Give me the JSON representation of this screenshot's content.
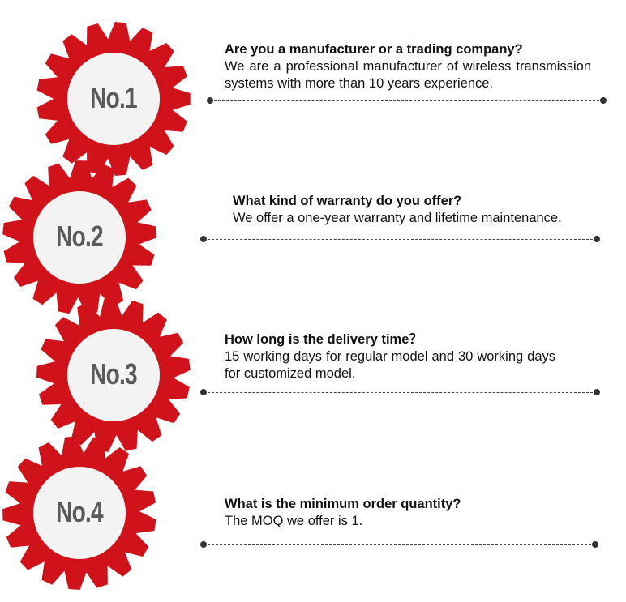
{
  "colors": {
    "gear": "#d0121b",
    "inner": "#f3f3f3",
    "label": "#5a5a5a"
  },
  "items": [
    {
      "label": "No.1",
      "question": "Are you a manufacturer or a trading company?",
      "answer": "We are a professional manufacturer of wireless transmission systems with more than 10 years experience."
    },
    {
      "label": "No.2",
      "question": "What kind of warranty do you offer?",
      "answer": "We offer a one-year warranty and lifetime maintenance."
    },
    {
      "label": "No.3",
      "question": "How long is the delivery time？",
      "answer": "15 working days for regular model and 30 working days for customized model."
    },
    {
      "label": "No.4",
      "question": "What is the minimum order quantity?",
      "answer": "The MOQ we offer is 1."
    }
  ]
}
